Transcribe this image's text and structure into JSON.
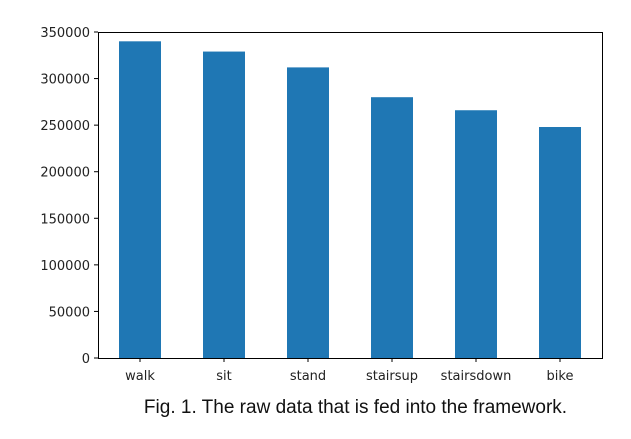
{
  "chart_data": {
    "type": "bar",
    "categories": [
      "walk",
      "sit",
      "stand",
      "stairsup",
      "stairsdown",
      "bike"
    ],
    "values": [
      340000,
      329000,
      312000,
      280000,
      266000,
      248000
    ],
    "ylim": [
      0,
      350000
    ],
    "yticks": [
      0,
      50000,
      100000,
      150000,
      200000,
      250000,
      300000,
      350000
    ],
    "bar_color": "#1f77b4",
    "grid": false
  },
  "caption": "Fig. 1. The raw data that is fed into the framework."
}
